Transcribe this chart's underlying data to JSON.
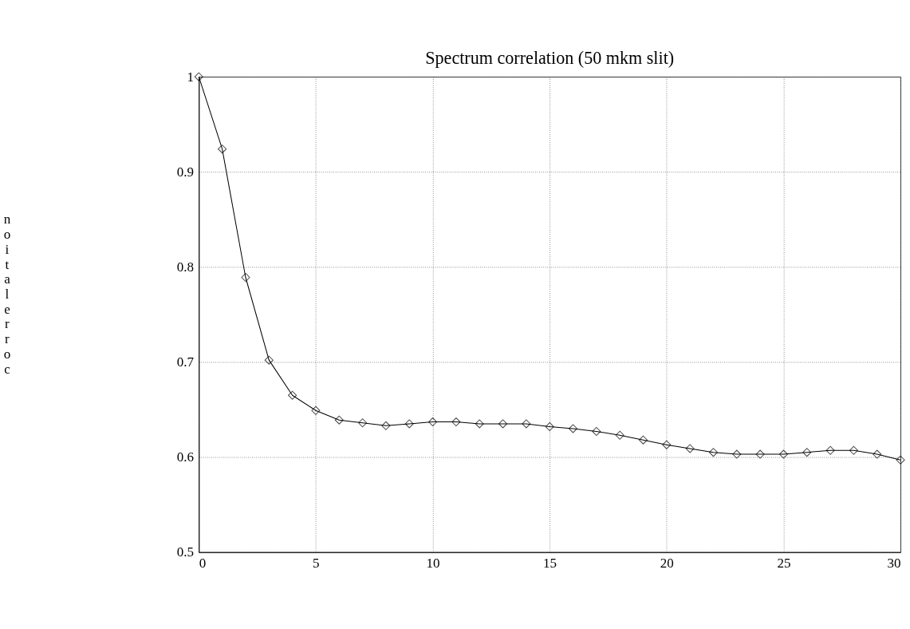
{
  "chart_data": {
    "type": "line",
    "title": "Spectrum correlation (50 mkm slit)",
    "ylabel": "noitalerroc",
    "x": [
      0,
      1,
      2,
      3,
      4,
      5,
      6,
      7,
      8,
      9,
      10,
      11,
      12,
      13,
      14,
      15,
      16,
      17,
      18,
      19,
      20,
      21,
      22,
      23,
      24,
      25,
      26,
      27,
      28,
      29,
      30
    ],
    "series": [
      {
        "color": "#000000",
        "values": [
          1.0,
          0.924,
          0.789,
          0.702,
          0.665,
          0.649,
          0.639,
          0.636,
          0.633,
          0.635,
          0.637,
          0.637,
          0.635,
          0.635,
          0.635,
          0.632,
          0.63,
          0.627,
          0.623,
          0.618,
          0.613,
          0.609,
          0.605,
          0.603,
          0.603,
          0.603,
          0.605,
          0.607,
          0.607,
          0.603,
          0.597
        ]
      }
    ],
    "xlim": [
      0,
      30
    ],
    "xticks": [
      0,
      5,
      10,
      15,
      20,
      25,
      30
    ],
    "ylim": [
      0.5,
      1
    ],
    "yticks": [
      0.5,
      0.6,
      0.7,
      0.8,
      0.9,
      1
    ],
    "grid": true,
    "marker": "diamond",
    "line_style": "solid"
  }
}
